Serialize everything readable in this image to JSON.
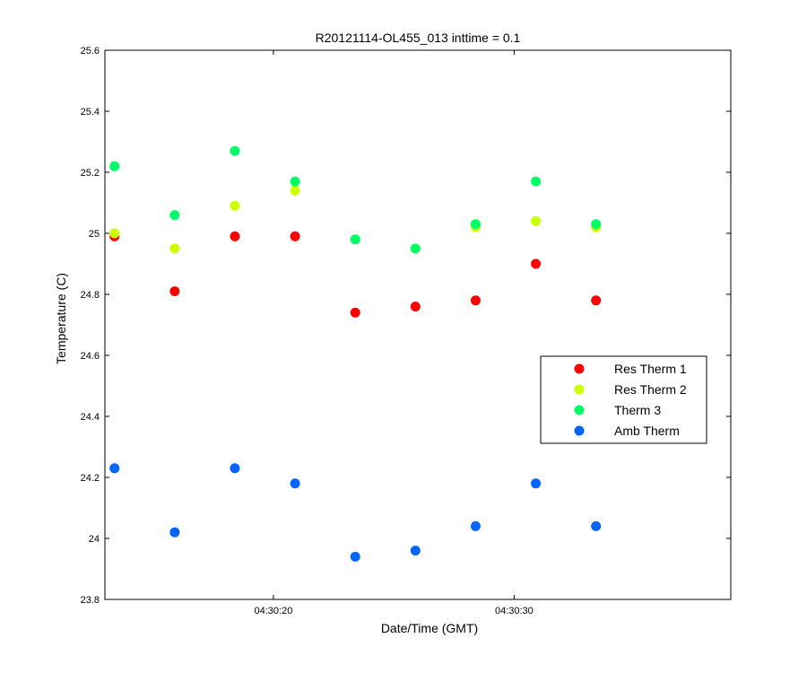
{
  "chart_data": {
    "type": "scatter",
    "title": "R20121114-OL455_013 inttime = 0.1",
    "xlabel": "Date/Time (GMT)",
    "ylabel": "Temperature (C)",
    "xlim": [
      "04:30:13",
      "04:30:39"
    ],
    "ylim": [
      23.8,
      25.6
    ],
    "x_ticks": [
      "04:30:20",
      "04:30:30"
    ],
    "y_ticks": [
      23.8,
      24,
      24.2,
      24.4,
      24.6,
      24.8,
      25,
      25.2,
      25.4,
      25.6
    ],
    "y_tick_labels": [
      "23.8",
      "24",
      "24.2",
      "24.4",
      "24.6",
      "24.8",
      "25",
      "25.2",
      "25.4",
      "25.6"
    ],
    "grid": false,
    "legend_position": "right",
    "x": [
      "04:30:13.4",
      "04:30:15.9",
      "04:30:18.4",
      "04:30:20.9",
      "04:30:23.4",
      "04:30:25.9",
      "04:30:28.4",
      "04:30:30.9",
      "04:30:33.4"
    ],
    "series": [
      {
        "name": "Res Therm 1",
        "color": "#ff0000",
        "values": [
          24.99,
          24.81,
          24.99,
          24.99,
          24.74,
          24.76,
          24.78,
          24.9,
          24.78
        ]
      },
      {
        "name": "Res Therm 2",
        "color": "#ccff00",
        "values": [
          25.0,
          24.95,
          25.09,
          25.14,
          24.98,
          24.95,
          25.02,
          25.04,
          25.02
        ]
      },
      {
        "name": "Therm 3",
        "color": "#00ff66",
        "values": [
          25.22,
          25.06,
          25.27,
          25.17,
          24.98,
          24.95,
          25.03,
          25.17,
          25.03
        ]
      },
      {
        "name": "Amb Therm",
        "color": "#0066ff",
        "values": [
          24.23,
          24.02,
          24.23,
          24.18,
          23.94,
          23.96,
          24.04,
          24.18,
          24.04
        ]
      }
    ]
  }
}
